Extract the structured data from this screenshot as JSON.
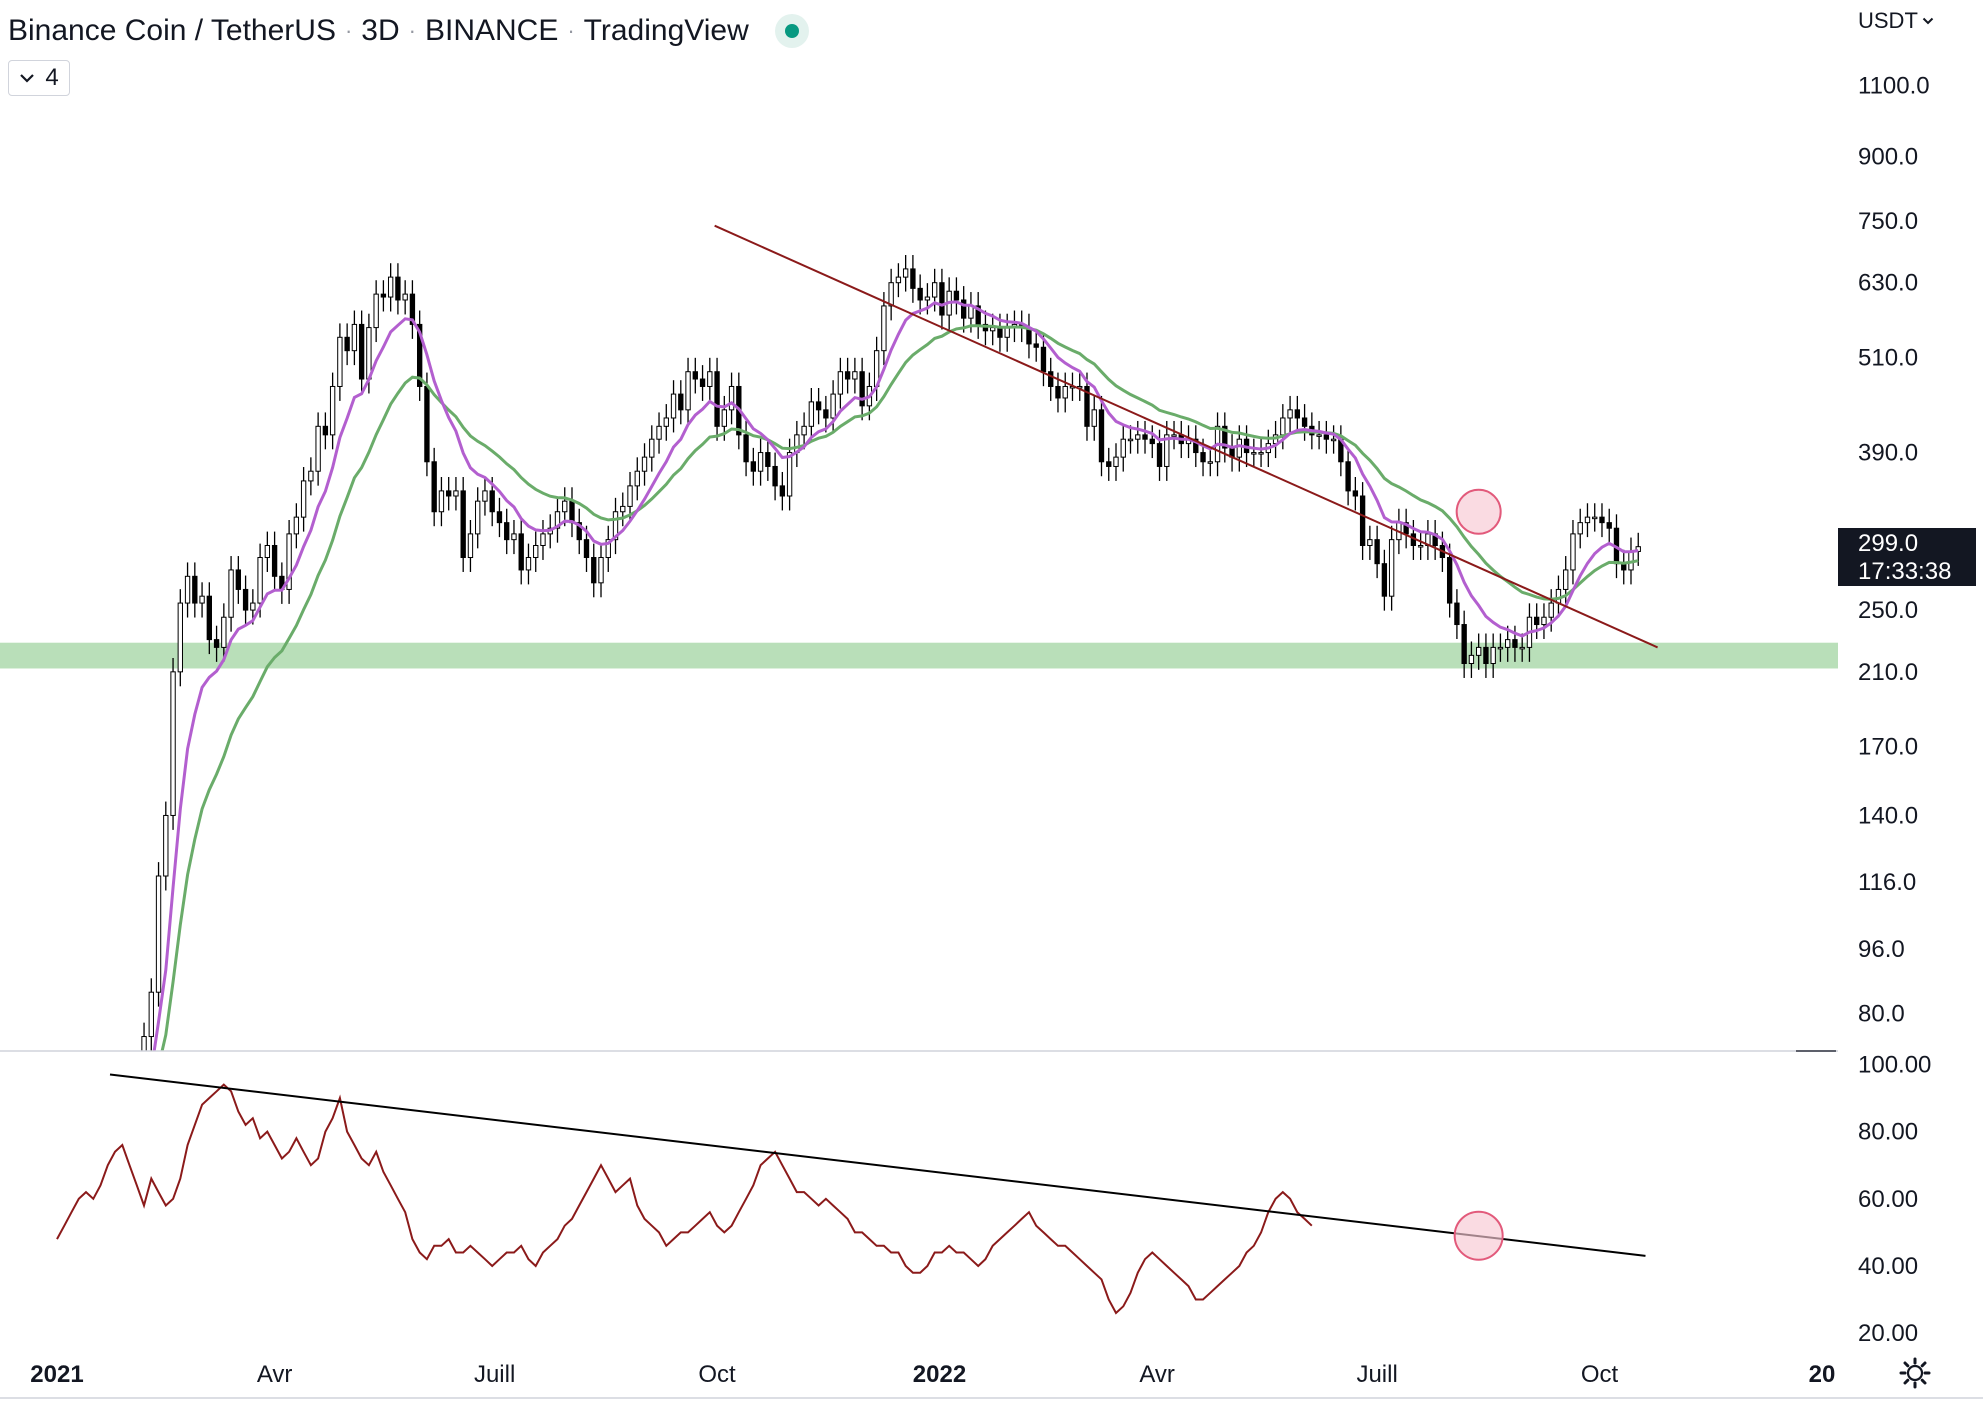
{
  "title": {
    "symbol": "Binance Coin / TetherUS",
    "interval": "3D",
    "exchange": "BINANCE",
    "source": "TradingView",
    "separator": "·"
  },
  "indicators_toggle": {
    "count": "4",
    "icon": "chevron-down-icon"
  },
  "currency": {
    "label": "USDT",
    "icon": "chevron-down-icon"
  },
  "price_badge": {
    "price": "299.0",
    "countdown": "17:33:38"
  },
  "colors": {
    "bull": "#ffffff",
    "bear": "#000000",
    "ema_fast": "#b35fcf",
    "ema_slow": "#6aac6a",
    "trendline": "#8b1a1a",
    "support_zone": "#b9dfb9",
    "rsi": "#8b1a1a",
    "rsi_trendline": "#000000",
    "highlight_fill": "#f7c7d2",
    "highlight_stroke": "#e25a7b"
  },
  "chart_data": [
    {
      "type": "candlestick",
      "scale": "log",
      "ylim": [
        72,
        1250
      ],
      "y_ticks": [
        "1100.0",
        "900.0",
        "750.0",
        "630.0",
        "510.0",
        "390.0",
        "250.0",
        "210.0",
        "170.0",
        "140.0",
        "116.0",
        "96.0",
        "80.0"
      ],
      "x_ticks": [
        {
          "label": "2021",
          "bold": true,
          "date": "2021-01-01"
        },
        {
          "label": "Avr",
          "bold": false,
          "date": "2021-04-01"
        },
        {
          "label": "Juill",
          "bold": false,
          "date": "2021-07-01"
        },
        {
          "label": "Oct",
          "bold": false,
          "date": "2021-10-01"
        },
        {
          "label": "2022",
          "bold": true,
          "date": "2022-01-01"
        },
        {
          "label": "Avr",
          "bold": false,
          "date": "2022-04-01"
        },
        {
          "label": "Juill",
          "bold": false,
          "date": "2022-07-01"
        },
        {
          "label": "Oct",
          "bold": false,
          "date": "2022-10-01"
        },
        {
          "label": "20",
          "bold": true,
          "date": "2023-01-01"
        }
      ],
      "start_date": "2021-01-31",
      "candle_days": 3,
      "close": [
        60,
        66,
        75,
        85,
        118,
        140,
        210,
        255,
        275,
        255,
        260,
        230,
        225,
        245,
        280,
        265,
        250,
        255,
        290,
        300,
        275,
        265,
        310,
        325,
        360,
        370,
        420,
        410,
        470,
        540,
        520,
        560,
        480,
        555,
        610,
        605,
        640,
        600,
        610,
        560,
        470,
        380,
        330,
        350,
        345,
        350,
        290,
        310,
        340,
        350,
        330,
        320,
        305,
        310,
        280,
        290,
        300,
        310,
        315,
        330,
        340,
        320,
        305,
        290,
        270,
        290,
        305,
        330,
        335,
        355,
        370,
        385,
        405,
        420,
        430,
        460,
        440,
        490,
        480,
        470,
        490,
        420,
        440,
        470,
        410,
        380,
        370,
        390,
        375,
        355,
        345,
        390,
        410,
        420,
        450,
        440,
        430,
        460,
        490,
        480,
        490,
        445,
        470,
        520,
        590,
        630,
        640,
        655,
        620,
        600,
        605,
        630,
        575,
        615,
        600,
        570,
        590,
        560,
        550,
        555,
        540,
        555,
        560,
        555,
        530,
        525,
        490,
        470,
        455,
        470,
        470,
        470,
        420,
        440,
        380,
        375,
        385,
        405,
        405,
        410,
        405,
        400,
        375,
        410,
        410,
        400,
        405,
        390,
        380,
        380,
        420,
        395,
        385,
        405,
        390,
        390,
        390,
        400,
        410,
        430,
        440,
        430,
        420,
        410,
        410,
        405,
        405,
        380,
        350,
        345,
        300,
        305,
        285,
        260,
        305,
        320,
        310,
        300,
        300,
        310,
        300,
        290,
        255,
        240,
        215,
        220,
        225,
        215,
        225,
        225,
        230,
        225,
        225,
        245,
        240,
        245,
        255,
        265,
        280,
        310,
        320,
        325,
        325,
        320,
        315,
        285,
        280,
        295,
        299
      ],
      "open_shift": 1,
      "wick_pct": 4,
      "ema_fast_period": 9,
      "ema_slow_period": 21,
      "support_zone": [
        212,
        228
      ],
      "trendline": {
        "start": {
          "date": "2021-09-30",
          "price": 740
        },
        "end": {
          "date": "2022-10-25",
          "price": 225
        }
      },
      "highlight": {
        "date": "2022-08-12",
        "price": 330
      },
      "current_price": 299.0
    },
    {
      "type": "line",
      "name": "RSI",
      "ylim": [
        12,
        104
      ],
      "y_ticks": [
        "100.00",
        "80.00",
        "60.00",
        "40.00",
        "20.00"
      ],
      "start_date": "2021-01-01",
      "step_days": 3,
      "values": [
        48,
        52,
        56,
        60,
        62,
        60,
        64,
        70,
        74,
        76,
        70,
        64,
        58,
        66,
        62,
        58,
        60,
        66,
        76,
        82,
        88,
        90,
        92,
        94,
        92,
        86,
        82,
        84,
        78,
        80,
        76,
        72,
        74,
        78,
        74,
        70,
        72,
        80,
        84,
        90,
        80,
        76,
        72,
        70,
        74,
        68,
        64,
        60,
        56,
        48,
        44,
        42,
        46,
        46,
        48,
        44,
        44,
        46,
        44,
        42,
        40,
        42,
        44,
        44,
        46,
        42,
        40,
        44,
        46,
        48,
        52,
        54,
        58,
        62,
        66,
        70,
        66,
        62,
        64,
        66,
        58,
        54,
        52,
        50,
        46,
        48,
        50,
        50,
        52,
        54,
        56,
        52,
        50,
        52,
        56,
        60,
        64,
        70,
        72,
        74,
        70,
        66,
        62,
        62,
        60,
        58,
        60,
        58,
        56,
        54,
        50,
        50,
        48,
        46,
        46,
        44,
        44,
        40,
        38,
        38,
        40,
        44,
        44,
        46,
        44,
        44,
        42,
        40,
        42,
        46,
        48,
        50,
        52,
        54,
        56,
        52,
        50,
        48,
        46,
        46,
        44,
        42,
        40,
        38,
        36,
        30,
        26,
        28,
        32,
        38,
        42,
        44,
        42,
        40,
        38,
        36,
        34,
        30,
        30,
        32,
        34,
        36,
        38,
        40,
        44,
        46,
        50,
        56,
        60,
        62,
        60,
        56,
        54,
        52
      ],
      "trendline": {
        "start": {
          "date": "2021-01-01",
          "value": 97
        },
        "end": {
          "date": "2022-10-20",
          "value": 43
        }
      },
      "highlight": {
        "date": "2022-08-12",
        "value": 49
      }
    }
  ]
}
